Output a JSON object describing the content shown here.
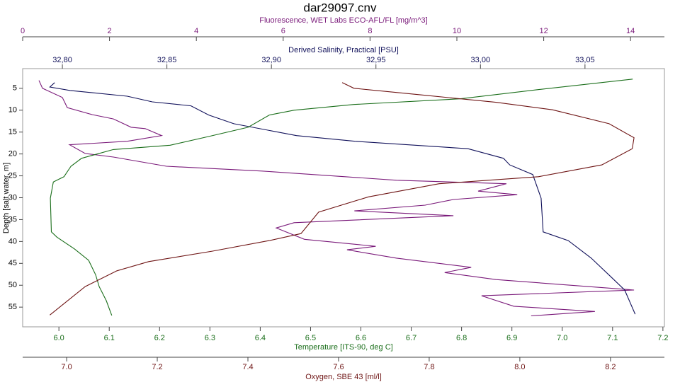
{
  "chart_data": {
    "type": "line",
    "title": "dar29097.cnv",
    "ylabel": "Depth [salt water, m]",
    "ylim": [
      0.5,
      59.5
    ],
    "y_inverted": true,
    "yticks": [
      5,
      10,
      15,
      20,
      25,
      30,
      35,
      40,
      45,
      50,
      55
    ],
    "grid": false,
    "series": [
      {
        "name": "Fluorescence, WET Labs ECO-AFL/FL [mg/m^3]",
        "color": "#7a1a7a",
        "axis": "top",
        "xlim": [
          0,
          14.78
        ],
        "xticks": [
          0,
          2,
          4,
          6,
          8,
          10,
          12,
          14
        ],
        "depth": [
          3.2,
          5,
          7.1,
          9.4,
          11,
          12,
          13.9,
          14.2,
          15.8,
          17.1,
          17.9,
          19.9,
          20.7,
          22.8,
          23.9,
          26,
          26.8,
          28.5,
          29.3,
          30.4,
          31.7,
          33,
          34.1,
          35.7,
          36.9,
          39.5,
          41.1,
          41.9,
          43.8,
          45.9,
          47.1,
          48.7,
          51.1,
          52.4,
          54.8,
          56,
          57
        ],
        "values": [
          0.375,
          0.457,
          0.914,
          1.028,
          1.6,
          2.09,
          2.5,
          2.82,
          3.2,
          2.41,
          1.08,
          1.44,
          2.09,
          3.31,
          5.51,
          8.61,
          11.14,
          10.49,
          11.39,
          9.92,
          9.27,
          7.64,
          9.92,
          6.25,
          5.84,
          6.49,
          8.13,
          7.47,
          8.61,
          10.33,
          9.72,
          10.9,
          14.08,
          10.57,
          11.31,
          13.18,
          11.71
        ]
      },
      {
        "name": "Derived Salinity, Practical [PSU]",
        "color": "#10105a",
        "axis": "top",
        "xlim": [
          32.781,
          33.088
        ],
        "xticks": [
          {
            "value": 32.8,
            "label": "32,80"
          },
          {
            "value": 32.85,
            "label": "32,85"
          },
          {
            "value": 32.9,
            "label": "32,90"
          },
          {
            "value": 32.95,
            "label": "32,95"
          },
          {
            "value": 33.0,
            "label": "33,00"
          },
          {
            "value": 33.05,
            "label": "33,05"
          }
        ],
        "depth": [
          3.7,
          4.7,
          5.5,
          6.8,
          8.1,
          9,
          11.1,
          13.1,
          15.8,
          17.1,
          18.8,
          21,
          22.5,
          24.7,
          30.1,
          37.8,
          39.8,
          43.8,
          47.9,
          51.1,
          56.6
        ],
        "values": [
          32.7963,
          32.794,
          32.8037,
          32.831,
          32.843,
          32.8615,
          32.87,
          32.882,
          32.912,
          32.94,
          32.994,
          33.011,
          33.014,
          33.025,
          33.029,
          33.03,
          33.042,
          33.053,
          33.062,
          33.069,
          33.074
        ]
      },
      {
        "name": "Temperature [ITS-90, deg C]",
        "color": "#1a6e1a",
        "axis": "bottom",
        "xlim": [
          5.928,
          7.203
        ],
        "xticks": [
          {
            "value": 6.0,
            "label": "6.0"
          },
          {
            "value": 6.1,
            "label": "6.1"
          },
          {
            "value": 6.2,
            "label": "6.2"
          },
          {
            "value": 6.3,
            "label": "6.3"
          },
          {
            "value": 6.4,
            "label": "6.4"
          },
          {
            "value": 6.5,
            "label": "6.5"
          },
          {
            "value": 6.6,
            "label": "6.6"
          },
          {
            "value": 6.7,
            "label": "6.7"
          },
          {
            "value": 6.8,
            "label": "6.8"
          },
          {
            "value": 6.9,
            "label": "6.9"
          },
          {
            "value": 7.0,
            "label": "7.0"
          },
          {
            "value": 7.1,
            "label": "7.1"
          },
          {
            "value": 7.2,
            "label": "7.2"
          }
        ],
        "depth": [
          2.9,
          5.3,
          7.4,
          8.7,
          10,
          11.1,
          13.9,
          16,
          18,
          19,
          21,
          22.8,
          25.2,
          26.4,
          30.1,
          37.8,
          39,
          41.7,
          44.3,
          47.6,
          50.3,
          53.5,
          56.9
        ],
        "values": [
          7.14,
          6.952,
          6.797,
          6.586,
          6.467,
          6.418,
          6.376,
          6.298,
          6.221,
          6.108,
          6.045,
          6.024,
          6.01,
          5.989,
          5.983,
          5.985,
          5.996,
          6.031,
          6.059,
          6.073,
          6.08,
          6.094,
          6.105
        ]
      },
      {
        "name": "Oxygen, SBE 43 [ml/l]",
        "color": "#6e1414",
        "axis": "bottom",
        "xlim": [
          6.903,
          8.319
        ],
        "xticks": [
          {
            "value": 7.0,
            "label": "7.0"
          },
          {
            "value": 7.2,
            "label": "7.2"
          },
          {
            "value": 7.4,
            "label": "7.4"
          },
          {
            "value": 7.6,
            "label": "7.6"
          },
          {
            "value": 7.8,
            "label": "7.8"
          },
          {
            "value": 8.0,
            "label": "8.0"
          },
          {
            "value": 8.2,
            "label": "8.2"
          }
        ],
        "depth": [
          3.7,
          5,
          6.6,
          8.2,
          9.9,
          13.1,
          16.3,
          18.8,
          22.5,
          25.2,
          26.8,
          29.8,
          33.3,
          38.2,
          39.8,
          42.2,
          44.6,
          46.7,
          50.3,
          56.8
        ],
        "values": [
          7.608,
          7.634,
          7.791,
          7.947,
          8.072,
          8.197,
          8.252,
          8.248,
          8.181,
          8.041,
          7.822,
          7.666,
          7.556,
          7.517,
          7.447,
          7.322,
          7.181,
          7.111,
          7.041,
          6.963
        ]
      }
    ]
  }
}
